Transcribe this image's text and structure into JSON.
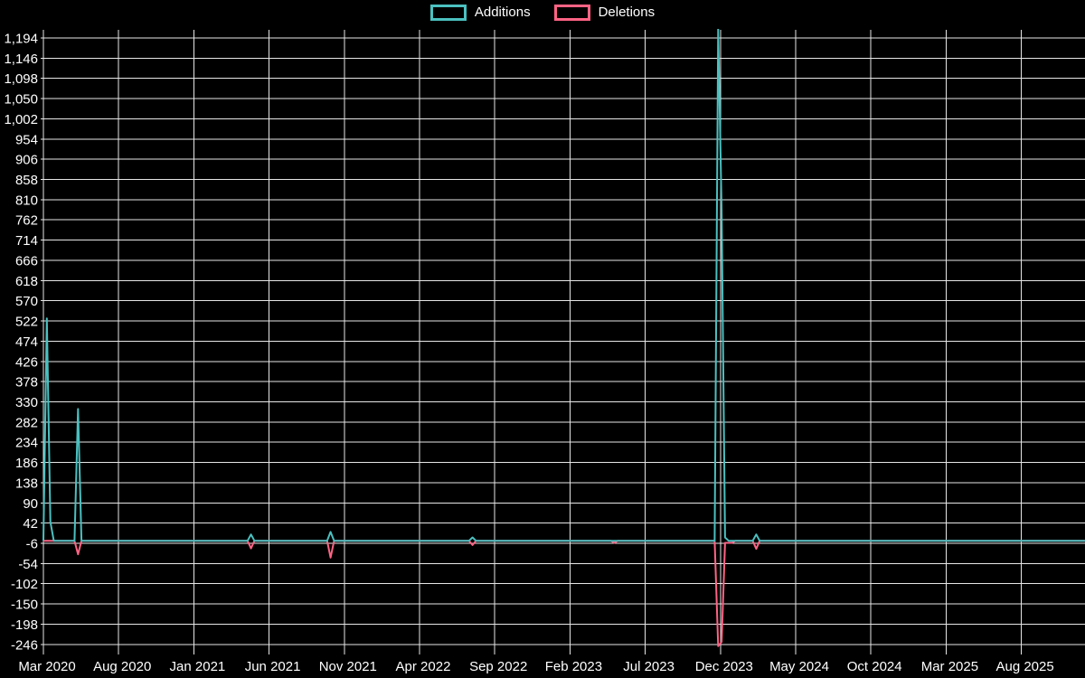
{
  "page": {
    "background": "#000000"
  },
  "legend": {
    "items": [
      {
        "label": "Additions",
        "color": "#4bc0c0"
      },
      {
        "label": "Deletions",
        "color": "#ff6384"
      }
    ]
  },
  "style": {
    "grid_color": "#e6e6e6",
    "text_color": "#ffffff",
    "additions_color": "#4bc0c0",
    "deletions_color": "#ff6384",
    "line_width": 2
  },
  "chart_data": {
    "type": "line",
    "title": "",
    "xlabel": "",
    "ylabel": "",
    "legend_position": "top-center",
    "grid": true,
    "x_axis": {
      "unit": "weeks since first tick (Mar 2020)",
      "tick_interval": "5 months",
      "weeks_per_tick": 21.74,
      "total_weeks": 301,
      "tick_labels": [
        "Mar 2020",
        "Aug 2020",
        "Jan 2021",
        "Jun 2021",
        "Nov 2021",
        "Apr 2022",
        "Sep 2022",
        "Feb 2023",
        "Jul 2023",
        "Dec 2023",
        "May 2024",
        "Oct 2024",
        "Mar 2025",
        "Aug 2025"
      ]
    },
    "y_axis": {
      "min": -246,
      "max": 1194,
      "tick_step": 48,
      "tick_labels": [
        "1,194",
        "1,146",
        "1,098",
        "1,050",
        "1,002",
        "954",
        "906",
        "858",
        "810",
        "762",
        "714",
        "666",
        "618",
        "570",
        "522",
        "474",
        "426",
        "378",
        "330",
        "282",
        "234",
        "186",
        "138",
        "90",
        "42",
        "-6",
        "-54",
        "-102",
        "-150",
        "-198",
        "-246"
      ]
    },
    "baseline_value": 0,
    "series": [
      {
        "name": "Additions",
        "color": "#4bc0c0",
        "default_value": 0,
        "points": [
          {
            "week": 1,
            "approx_date": "Mar 2020",
            "value": 528
          },
          {
            "week": 2,
            "approx_date": "Mar 2020",
            "value": 45
          },
          {
            "week": 10,
            "approx_date": "May 2020",
            "value": 313
          },
          {
            "week": 60,
            "approx_date": "Apr 2021",
            "value": 15
          },
          {
            "week": 83,
            "approx_date": "Oct 2021",
            "value": 21
          },
          {
            "week": 124,
            "approx_date": "Jul 2022",
            "value": 8
          },
          {
            "week": 195,
            "approx_date": "Nov 2023",
            "value": 1215,
            "note": "peak clipped at top of plot area"
          },
          {
            "week": 196,
            "approx_date": "Dec 2023",
            "value": 785
          },
          {
            "week": 197,
            "approx_date": "Dec 2023",
            "value": 8
          },
          {
            "week": 206,
            "approx_date": "Feb 2024",
            "value": 15
          }
        ]
      },
      {
        "name": "Deletions",
        "color": "#ff6384",
        "default_value": 0,
        "points": [
          {
            "week": 10,
            "approx_date": "May 2020",
            "value": -32
          },
          {
            "week": 60,
            "approx_date": "Apr 2021",
            "value": -18
          },
          {
            "week": 83,
            "approx_date": "Oct 2021",
            "value": -40
          },
          {
            "week": 124,
            "approx_date": "Jul 2022",
            "value": -10
          },
          {
            "week": 165,
            "approx_date": "Apr 2023",
            "value": -5
          },
          {
            "week": 195,
            "approx_date": "Nov 2023",
            "value": -250,
            "note": "dip clipped at bottom of plot area (axis min -246)"
          },
          {
            "week": 196,
            "approx_date": "Dec 2023",
            "value": -240
          },
          {
            "week": 197,
            "week_end": 199,
            "approx_date": "Dec 2023",
            "value": -5
          },
          {
            "week": 206,
            "approx_date": "Feb 2024",
            "value": -19
          }
        ]
      }
    ]
  }
}
